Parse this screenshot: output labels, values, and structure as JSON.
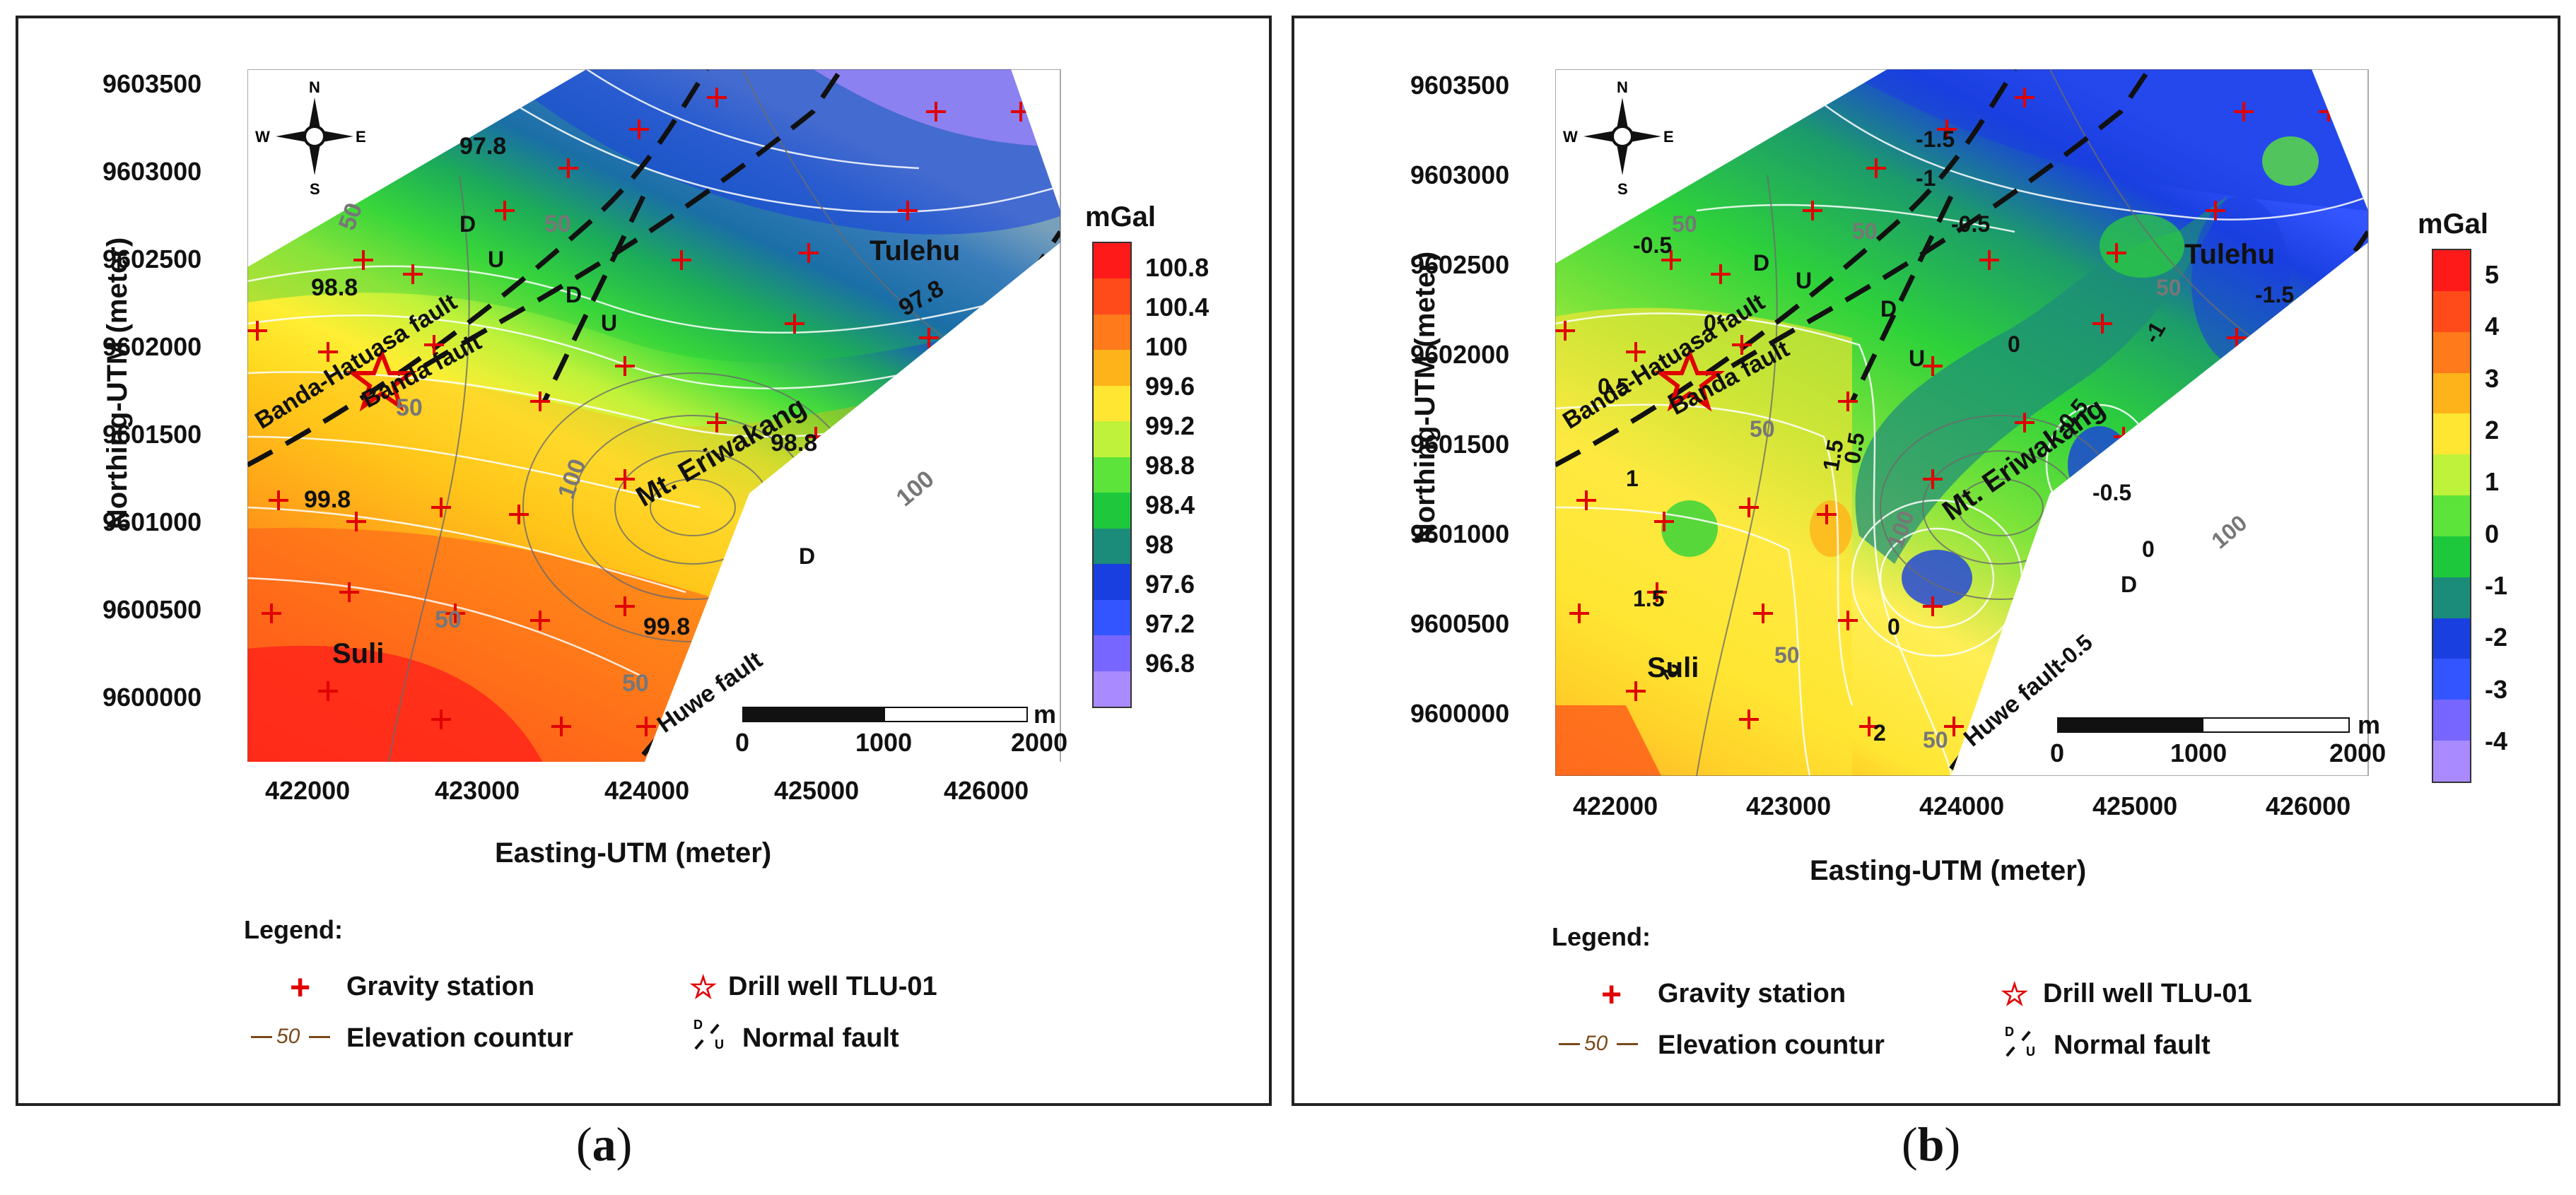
{
  "figure": {
    "panels": [
      {
        "id": "a",
        "letter_open": "(",
        "letter": "a",
        "letter_close": ")",
        "unit": "mGal",
        "xlabel": "Easting-UTM (meter)",
        "ylabel": "Northing-UTM (meter)",
        "x_ticks": [
          "422000",
          "423000",
          "424000",
          "425000",
          "426000"
        ],
        "y_ticks": [
          "9603500",
          "9603000",
          "9602500",
          "9602000",
          "9601500",
          "9601000",
          "9600500",
          "9600000"
        ],
        "colorbar_labels": [
          "100.8",
          "100.4",
          "100",
          "99.6",
          "99.2",
          "98.8",
          "98.4",
          "98",
          "97.6",
          "97.2",
          "96.8"
        ],
        "colorbar_colors": [
          "#ff1a1a",
          "#ff4b1a",
          "#ff7a1a",
          "#ffb31a",
          "#ffe633",
          "#bff23a",
          "#5ce43a",
          "#1ec83c",
          "#1c8c7a",
          "#1a3fe0",
          "#3355ff",
          "#7766ff",
          "#a98aff"
        ],
        "place_labels": [
          "Tulehu",
          "Mt. Eriwakang",
          "Suli"
        ],
        "fault_labels": [
          "Banda-Hatuasa fault",
          "Banda fault",
          "Huwe fault"
        ],
        "contour_labels": [
          "97.8",
          "97.8",
          "98.8",
          "98.8",
          "99.8",
          "99.8"
        ],
        "elevation_labels": [
          "50",
          "50",
          "50",
          "50",
          "100",
          "100",
          "50"
        ],
        "fault_marks": [
          "D",
          "U",
          "D",
          "U",
          "D"
        ],
        "scale_bar": {
          "unit": "m",
          "labels": [
            "0",
            "1000",
            "2000"
          ]
        },
        "north_arrow": {
          "n": "N",
          "s": "S",
          "e": "E",
          "w": "W"
        },
        "legend": {
          "title": "Legend:",
          "gravity_station": "Gravity station",
          "drill_well": "Drill well TLU-01",
          "elevation_contour_sample": "50",
          "elevation_contour": "Elevation countur",
          "fault_sample_d": "D",
          "fault_sample_u": "U",
          "normal_fault": "Normal fault"
        }
      },
      {
        "id": "b",
        "letter_open": "(",
        "letter": "b",
        "letter_close": ")",
        "unit": "mGal",
        "xlabel": "Easting-UTM (meter)",
        "ylabel": "Northing-UTM (meter)",
        "x_ticks": [
          "422000",
          "423000",
          "424000",
          "425000",
          "426000"
        ],
        "y_ticks": [
          "9603500",
          "9603000",
          "9602500",
          "9602000",
          "9601500",
          "9601000",
          "9600500",
          "9600000"
        ],
        "colorbar_labels": [
          "5",
          "4",
          "3",
          "2",
          "1",
          "0",
          "-1",
          "-2",
          "-3",
          "-4"
        ],
        "colorbar_colors": [
          "#ff1a1a",
          "#ff4b1a",
          "#ff7a1a",
          "#ffb31a",
          "#ffe633",
          "#bff23a",
          "#5ce43a",
          "#1ec83c",
          "#1c8c7a",
          "#1a3fe0",
          "#3355ff",
          "#7766ff",
          "#a98aff"
        ],
        "place_labels": [
          "Tulehu",
          "Mt. Eriwakang",
          "Suli"
        ],
        "fault_labels": [
          "Banda-Hatuasa fault",
          "Banda fault",
          "Huwe fault"
        ],
        "contour_labels": [
          "-0.5",
          "-1.5",
          "-1",
          "-0.5",
          "-1.5",
          "0",
          "0",
          "-1",
          "-0.5",
          "-0.5",
          "0.5",
          "1.5",
          "0.5",
          "1",
          "1.5",
          "2",
          "0",
          "2",
          "-0.5",
          "0"
        ],
        "elevation_labels": [
          "50",
          "50",
          "50",
          "50",
          "100",
          "100",
          "50",
          "50"
        ],
        "fault_marks": [
          "D",
          "U",
          "D",
          "U",
          "D"
        ],
        "scale_bar": {
          "unit": "m",
          "labels": [
            "0",
            "1000",
            "2000"
          ]
        },
        "north_arrow": {
          "n": "N",
          "s": "S",
          "e": "E",
          "w": "W"
        },
        "legend": {
          "title": "Legend:",
          "gravity_station": "Gravity station",
          "drill_well": "Drill well TLU-01",
          "elevation_contour_sample": "50",
          "elevation_contour": "Elevation countur",
          "fault_sample_d": "D",
          "fault_sample_u": "U",
          "normal_fault": "Normal fault"
        }
      }
    ]
  }
}
